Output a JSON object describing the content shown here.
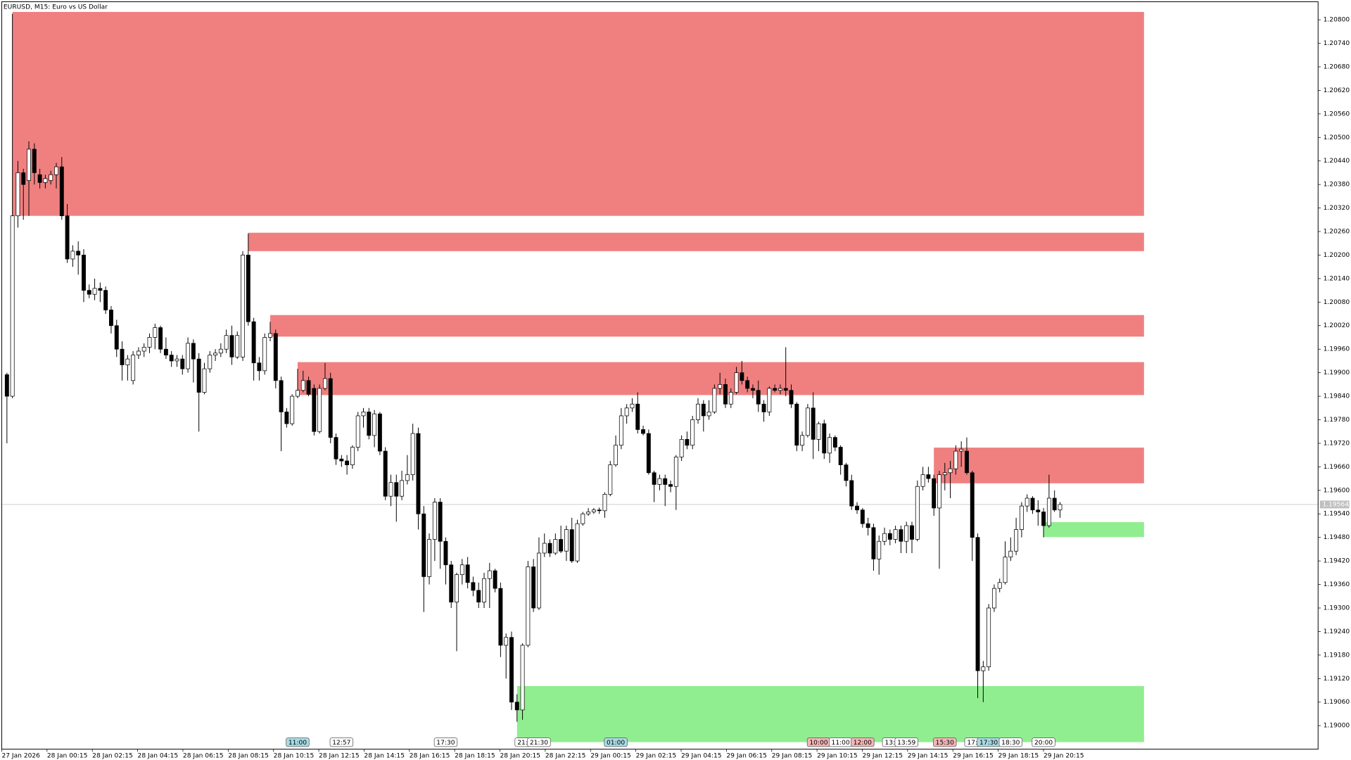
{
  "chart_data": {
    "type": "candlestick",
    "title": "EURUSD, M15:  Euro vs US Dollar",
    "ylim": [
      1.1894,
      1.20846
    ],
    "yticks": [
      {
        "value": 1.208,
        "label": "1.20800"
      },
      {
        "value": 1.2074,
        "label": "1.20740"
      },
      {
        "value": 1.2068,
        "label": "1.20680"
      },
      {
        "value": 1.2062,
        "label": "1.20620"
      },
      {
        "value": 1.2056,
        "label": "1.20560"
      },
      {
        "value": 1.205,
        "label": "1.20500"
      },
      {
        "value": 1.2044,
        "label": "1.20440"
      },
      {
        "value": 1.2038,
        "label": "1.20380"
      },
      {
        "value": 1.2032,
        "label": "1.20320"
      },
      {
        "value": 1.2026,
        "label": "1.20260"
      },
      {
        "value": 1.202,
        "label": "1.20200"
      },
      {
        "value": 1.2014,
        "label": "1.20140"
      },
      {
        "value": 1.2008,
        "label": "1.20080"
      },
      {
        "value": 1.2002,
        "label": "1.20020"
      },
      {
        "value": 1.1996,
        "label": "1.19960"
      },
      {
        "value": 1.199,
        "label": "1.19900"
      },
      {
        "value": 1.1984,
        "label": "1.19840"
      },
      {
        "value": 1.1978,
        "label": "1.19780"
      },
      {
        "value": 1.1972,
        "label": "1.19720"
      },
      {
        "value": 1.1966,
        "label": "1.19660"
      },
      {
        "value": 1.196,
        "label": "1.19600"
      },
      {
        "value": 1.1954,
        "label": "1.19540"
      },
      {
        "value": 1.1948,
        "label": "1.19480"
      },
      {
        "value": 1.1942,
        "label": "1.19420"
      },
      {
        "value": 1.1936,
        "label": "1.19360"
      },
      {
        "value": 1.193,
        "label": "1.19300"
      },
      {
        "value": 1.1924,
        "label": "1.19240"
      },
      {
        "value": 1.1918,
        "label": "1.19180"
      },
      {
        "value": 1.1912,
        "label": "1.19120"
      },
      {
        "value": 1.1906,
        "label": "1.19060"
      },
      {
        "value": 1.19,
        "label": "1.19000"
      }
    ],
    "x_labels": [
      "27 Jan 2026",
      "28 Jan 00:15",
      "28 Jan 02:15",
      "28 Jan 04:15",
      "28 Jan 06:15",
      "28 Jan 08:15",
      "28 Jan 10:15",
      "28 Jan 12:15",
      "28 Jan 14:15",
      "28 Jan 16:15",
      "28 Jan 18:15",
      "28 Jan 20:15",
      "28 Jan 22:15",
      "29 Jan 00:15",
      "29 Jan 02:15",
      "29 Jan 04:15",
      "29 Jan 06:15",
      "29 Jan 08:15",
      "29 Jan 10:15",
      "29 Jan 12:15",
      "29 Jan 14:15",
      "29 Jan 16:15",
      "29 Jan 18:15",
      "29 Jan 20:15"
    ],
    "current_price": 1.19564,
    "up_color": "#ffffff",
    "down_color": "#000000",
    "open": [
      1.19895,
      1.1984,
      1.203,
      1.2041,
      1.2039,
      1.2047,
      1.20405,
      1.20385,
      1.2039,
      1.20405,
      1.20425,
      1.203,
      1.2019,
      1.2021,
      1.202,
      1.2011,
      1.201,
      1.20115,
      1.2011,
      1.2006,
      1.2002,
      1.1996,
      1.1992,
      1.1988,
      1.19945,
      1.19955,
      1.19965,
      1.1999,
      1.20015,
      1.1996,
      1.19945,
      1.1993,
      1.19935,
      1.1991,
      1.19975,
      1.19935,
      1.1985,
      1.1991,
      1.19945,
      1.1995,
      1.1996,
      1.19995,
      1.1994,
      1.1994,
      1.202,
      1.2003,
      1.19925,
      1.19905,
      1.1999,
      1.2,
      1.1988,
      1.198,
      1.1977,
      1.1984,
      1.19855,
      1.1988,
      1.1986,
      1.1975,
      1.1986,
      1.19885,
      1.19735,
      1.1968,
      1.19675,
      1.19665,
      1.1971,
      1.1979,
      1.198,
      1.1974,
      1.19795,
      1.197,
      1.19585,
      1.1962,
      1.19585,
      1.19625,
      1.1964,
      1.19745,
      1.1954,
      1.1938,
      1.19475,
      1.1957,
      1.1947,
      1.1941,
      1.19315,
      1.19385,
      1.1941,
      1.19365,
      1.19345,
      1.19315,
      1.19375,
      1.19395,
      1.1935,
      1.19205,
      1.19225,
      1.1906,
      1.1904,
      1.19205,
      1.19405,
      1.193,
      1.1944,
      1.19465,
      1.1944,
      1.19475,
      1.19445,
      1.195,
      1.1942,
      1.19515,
      1.1954,
      1.19545,
      1.1955,
      1.19548,
      1.1959,
      1.19665,
      1.19715,
      1.1979,
      1.1981,
      1.1982,
      1.19755,
      1.19745,
      1.19645,
      1.19615,
      1.1963,
      1.19615,
      1.1961,
      1.19685,
      1.1973,
      1.19715,
      1.1978,
      1.1982,
      1.1979,
      1.198,
      1.1986,
      1.1987,
      1.1982,
      1.1985,
      1.199,
      1.1988,
      1.1986,
      1.19855,
      1.1982,
      1.198,
      1.1986,
      1.19855,
      1.1986,
      1.19855,
      1.1982,
      1.19715,
      1.1974,
      1.1981,
      1.1973,
      1.1977,
      1.19695,
      1.19735,
      1.1971,
      1.19665,
      1.19625,
      1.1956,
      1.1955,
      1.19515,
      1.19505,
      1.19425,
      1.1947,
      1.1949,
      1.19475,
      1.195,
      1.1947,
      1.1951,
      1.19475,
      1.1961,
      1.1964,
      1.1963,
      1.19555,
      1.1964,
      1.19645,
      1.19655,
      1.197,
      1.197,
      1.19645,
      1.1948,
      1.1914,
      1.1915,
      1.193,
      1.1935,
      1.19365,
      1.1943,
      1.19445,
      1.195,
      1.1956,
      1.1958,
      1.1955,
      1.19545,
      1.1951,
      1.1958,
      1.1955
    ],
    "high": [
      1.199,
      1.20815,
      1.2044,
      1.2042,
      1.2049,
      1.20485,
      1.2042,
      1.20405,
      1.20415,
      1.20435,
      1.2045,
      1.2033,
      1.20225,
      1.20235,
      1.20215,
      1.20125,
      1.2014,
      1.2013,
      1.2012,
      1.2007,
      1.20035,
      1.1998,
      1.19945,
      1.19955,
      1.19965,
      1.19975,
      1.2,
      1.20025,
      1.2002,
      1.1999,
      1.19955,
      1.19945,
      1.19945,
      1.1999,
      1.19985,
      1.1995,
      1.19925,
      1.19955,
      1.1996,
      1.19975,
      1.2001,
      1.2002,
      1.20005,
      1.2021,
      1.20255,
      1.2004,
      1.1994,
      1.2,
      1.2003,
      1.2001,
      1.1989,
      1.1981,
      1.19845,
      1.1991,
      1.19905,
      1.1989,
      1.1987,
      1.1987,
      1.19925,
      1.199,
      1.19745,
      1.1969,
      1.1969,
      1.19715,
      1.198,
      1.1981,
      1.1981,
      1.19805,
      1.198,
      1.1971,
      1.1964,
      1.1964,
      1.1965,
      1.1969,
      1.1977,
      1.1976,
      1.1956,
      1.1949,
      1.1958,
      1.1958,
      1.1948,
      1.1942,
      1.1939,
      1.19425,
      1.1943,
      1.1938,
      1.19365,
      1.1939,
      1.19415,
      1.194,
      1.19365,
      1.19235,
      1.1924,
      1.1908,
      1.1921,
      1.1942,
      1.19425,
      1.1948,
      1.1949,
      1.19475,
      1.1949,
      1.1951,
      1.1951,
      1.1953,
      1.19525,
      1.19545,
      1.19555,
      1.19555,
      1.19556,
      1.19595,
      1.19675,
      1.1974,
      1.1981,
      1.1982,
      1.19835,
      1.1985,
      1.19765,
      1.19755,
      1.1965,
      1.1964,
      1.1964,
      1.19625,
      1.1969,
      1.1974,
      1.1975,
      1.1979,
      1.19835,
      1.1983,
      1.1983,
      1.1987,
      1.199,
      1.19885,
      1.1986,
      1.19915,
      1.1993,
      1.1989,
      1.1987,
      1.1988,
      1.1983,
      1.19865,
      1.1987,
      1.1987,
      1.19965,
      1.1987,
      1.19825,
      1.1975,
      1.1982,
      1.1985,
      1.19775,
      1.1978,
      1.19745,
      1.1974,
      1.19715,
      1.1967,
      1.1964,
      1.1957,
      1.19555,
      1.1953,
      1.19515,
      1.19485,
      1.19505,
      1.195,
      1.1951,
      1.1951,
      1.1952,
      1.1952,
      1.19625,
      1.1966,
      1.1966,
      1.1964,
      1.1965,
      1.1967,
      1.19675,
      1.19715,
      1.19725,
      1.19735,
      1.1965,
      1.1949,
      1.19165,
      1.1931,
      1.1936,
      1.19375,
      1.1947,
      1.1948,
      1.1953,
      1.1957,
      1.1959,
      1.19585,
      1.19575,
      1.19555,
      1.1964,
      1.196,
      1.1957
    ],
    "low": [
      1.1972,
      1.19835,
      1.2027,
      1.2029,
      1.203,
      1.2038,
      1.2037,
      1.2037,
      1.2038,
      1.2037,
      1.2029,
      1.2018,
      1.2017,
      1.2015,
      1.2008,
      1.2009,
      1.20085,
      1.2008,
      1.2005,
      1.2,
      1.1994,
      1.1988,
      1.1988,
      1.1987,
      1.19935,
      1.1994,
      1.1995,
      1.1996,
      1.1995,
      1.19935,
      1.19915,
      1.19915,
      1.19895,
      1.199,
      1.19875,
      1.1975,
      1.19845,
      1.199,
      1.1993,
      1.1994,
      1.1995,
      1.1992,
      1.19935,
      1.1993,
      1.2002,
      1.1988,
      1.1988,
      1.19895,
      1.1998,
      1.1986,
      1.197,
      1.1976,
      1.19765,
      1.19835,
      1.1985,
      1.1984,
      1.1974,
      1.19745,
      1.19855,
      1.1972,
      1.19665,
      1.1966,
      1.1964,
      1.19655,
      1.197,
      1.1976,
      1.1973,
      1.1971,
      1.1969,
      1.19575,
      1.1956,
      1.1952,
      1.19575,
      1.19615,
      1.19625,
      1.195,
      1.1929,
      1.1936,
      1.1942,
      1.194,
      1.1936,
      1.193,
      1.1919,
      1.1936,
      1.1935,
      1.1933,
      1.193,
      1.193,
      1.193,
      1.1934,
      1.19175,
      1.1912,
      1.1904,
      1.1901,
      1.19015,
      1.192,
      1.1929,
      1.19295,
      1.1943,
      1.1943,
      1.19435,
      1.1944,
      1.1942,
      1.19415,
      1.19415,
      1.1951,
      1.19535,
      1.1954,
      1.1954,
      1.1953,
      1.19585,
      1.1966,
      1.19705,
      1.1977,
      1.198,
      1.19745,
      1.1974,
      1.1964,
      1.1957,
      1.196,
      1.1956,
      1.19595,
      1.1955,
      1.19675,
      1.19705,
      1.19705,
      1.1977,
      1.1975,
      1.1978,
      1.19795,
      1.19845,
      1.1981,
      1.1981,
      1.19845,
      1.1987,
      1.1985,
      1.19835,
      1.198,
      1.19775,
      1.1979,
      1.1985,
      1.19845,
      1.1984,
      1.1981,
      1.197,
      1.197,
      1.19735,
      1.1968,
      1.197,
      1.1968,
      1.1967,
      1.197,
      1.1964,
      1.1961,
      1.1955,
      1.1954,
      1.19505,
      1.19485,
      1.19395,
      1.19385,
      1.1946,
      1.1946,
      1.19465,
      1.1944,
      1.1944,
      1.1944,
      1.1947,
      1.196,
      1.1962,
      1.19535,
      1.194,
      1.196,
      1.1958,
      1.1964,
      1.1966,
      1.1964,
      1.1942,
      1.1907,
      1.1906,
      1.1914,
      1.1929,
      1.1934,
      1.1936,
      1.1942,
      1.19435,
      1.1948,
      1.19545,
      1.1954,
      1.1951,
      1.1948,
      1.19505,
      1.19545,
      1.1953
    ],
    "close": [
      1.1984,
      1.203,
      1.2041,
      1.2038,
      1.2047,
      1.2041,
      1.20385,
      1.20395,
      1.20405,
      1.20425,
      1.203,
      1.2019,
      1.2021,
      1.202,
      1.2011,
      1.201,
      1.20115,
      1.2011,
      1.2006,
      1.2002,
      1.1996,
      1.1992,
      1.19935,
      1.19945,
      1.19955,
      1.19965,
      1.1999,
      1.20015,
      1.1996,
      1.19945,
      1.1993,
      1.19935,
      1.1991,
      1.19975,
      1.19935,
      1.1985,
      1.1991,
      1.19945,
      1.1995,
      1.1996,
      1.19995,
      1.1994,
      1.19995,
      1.202,
      1.2003,
      1.19925,
      1.19905,
      1.1999,
      1.2,
      1.1988,
      1.198,
      1.1977,
      1.1984,
      1.19855,
      1.1988,
      1.19845,
      1.1975,
      1.1986,
      1.19885,
      1.19735,
      1.1968,
      1.19675,
      1.19665,
      1.1971,
      1.1979,
      1.198,
      1.1974,
      1.19795,
      1.197,
      1.19585,
      1.1962,
      1.19585,
      1.19625,
      1.1964,
      1.19745,
      1.1954,
      1.1938,
      1.19475,
      1.1957,
      1.1947,
      1.1941,
      1.19315,
      1.19385,
      1.1941,
      1.19365,
      1.19345,
      1.19315,
      1.19375,
      1.19395,
      1.1935,
      1.19205,
      1.19225,
      1.1906,
      1.1904,
      1.19205,
      1.19405,
      1.193,
      1.1944,
      1.19465,
      1.1944,
      1.19475,
      1.19445,
      1.195,
      1.1942,
      1.19515,
      1.1954,
      1.19545,
      1.1955,
      1.19548,
      1.1959,
      1.19665,
      1.19715,
      1.1979,
      1.1981,
      1.1982,
      1.19755,
      1.19745,
      1.19645,
      1.19615,
      1.1963,
      1.19615,
      1.1961,
      1.19685,
      1.1973,
      1.19715,
      1.1978,
      1.1982,
      1.1979,
      1.198,
      1.1986,
      1.1987,
      1.1982,
      1.1985,
      1.199,
      1.1988,
      1.1986,
      1.19855,
      1.1982,
      1.198,
      1.1986,
      1.19855,
      1.1986,
      1.19855,
      1.1982,
      1.19715,
      1.1974,
      1.1981,
      1.1973,
      1.1977,
      1.19695,
      1.19735,
      1.1971,
      1.19665,
      1.19625,
      1.1956,
      1.1955,
      1.19515,
      1.19505,
      1.19425,
      1.1947,
      1.1949,
      1.19475,
      1.195,
      1.1947,
      1.1951,
      1.19475,
      1.1961,
      1.1964,
      1.1963,
      1.19555,
      1.1964,
      1.19645,
      1.19655,
      1.197,
      1.19705,
      1.19645,
      1.1948,
      1.1914,
      1.1915,
      1.193,
      1.1935,
      1.19365,
      1.1943,
      1.19445,
      1.195,
      1.1956,
      1.1958,
      1.1955,
      1.19545,
      1.1951,
      1.1958,
      1.1955,
      1.19564
    ],
    "zones": [
      {
        "candle": 1,
        "top": 1.2082,
        "bottom": 1.203,
        "color": "#f08080"
      },
      {
        "candle": 44,
        "top": 1.20257,
        "bottom": 1.2021,
        "color": "#f08080"
      },
      {
        "candle": 48,
        "top": 1.20047,
        "bottom": 1.19992,
        "color": "#f08080"
      },
      {
        "candle": 53,
        "top": 1.19927,
        "bottom": 1.19843,
        "color": "#f08080"
      },
      {
        "candle": 169,
        "top": 1.19709,
        "bottom": 1.19618,
        "color": "#f08080"
      },
      {
        "candle": 189,
        "top": 1.19519,
        "bottom": 1.19481,
        "color": "#90ee90"
      },
      {
        "candle": 93,
        "top": 1.19101,
        "bottom": 1.18958,
        "color": "#90ee90"
      }
    ],
    "markers": [
      {
        "candle": 53,
        "label": "11:00",
        "color": "#a8dce4"
      },
      {
        "candle": 61,
        "label": "12:57",
        "color": "#ffffff"
      },
      {
        "candle": 80,
        "label": "17:30",
        "color": "#ffffff"
      },
      {
        "candle": 94,
        "label": "21:",
        "color": "#ffffff"
      },
      {
        "candle": 97,
        "label": "21:30",
        "color": "#ffffff"
      },
      {
        "candle": 111,
        "label": "01:00",
        "color": "#a8dce4"
      },
      {
        "candle": 148,
        "label": "10:00",
        "color": "#f4b6b6"
      },
      {
        "candle": 152,
        "label": "11:00",
        "color": "#ffffff"
      },
      {
        "candle": 156,
        "label": "12:00",
        "color": "#f4b6b6"
      },
      {
        "candle": 161,
        "label": "13:",
        "color": "#ffffff"
      },
      {
        "candle": 164,
        "label": "13:59",
        "color": "#ffffff"
      },
      {
        "candle": 171,
        "label": "15:30",
        "color": "#f4b6b6"
      },
      {
        "candle": 176,
        "label": "17:",
        "color": "#ffffff"
      },
      {
        "candle": 179,
        "label": "17:30",
        "color": "#a8dce4"
      },
      {
        "candle": 183,
        "label": "18:30",
        "color": "#ffffff"
      },
      {
        "candle": 189,
        "label": "20:00",
        "color": "#ffffff"
      }
    ]
  }
}
